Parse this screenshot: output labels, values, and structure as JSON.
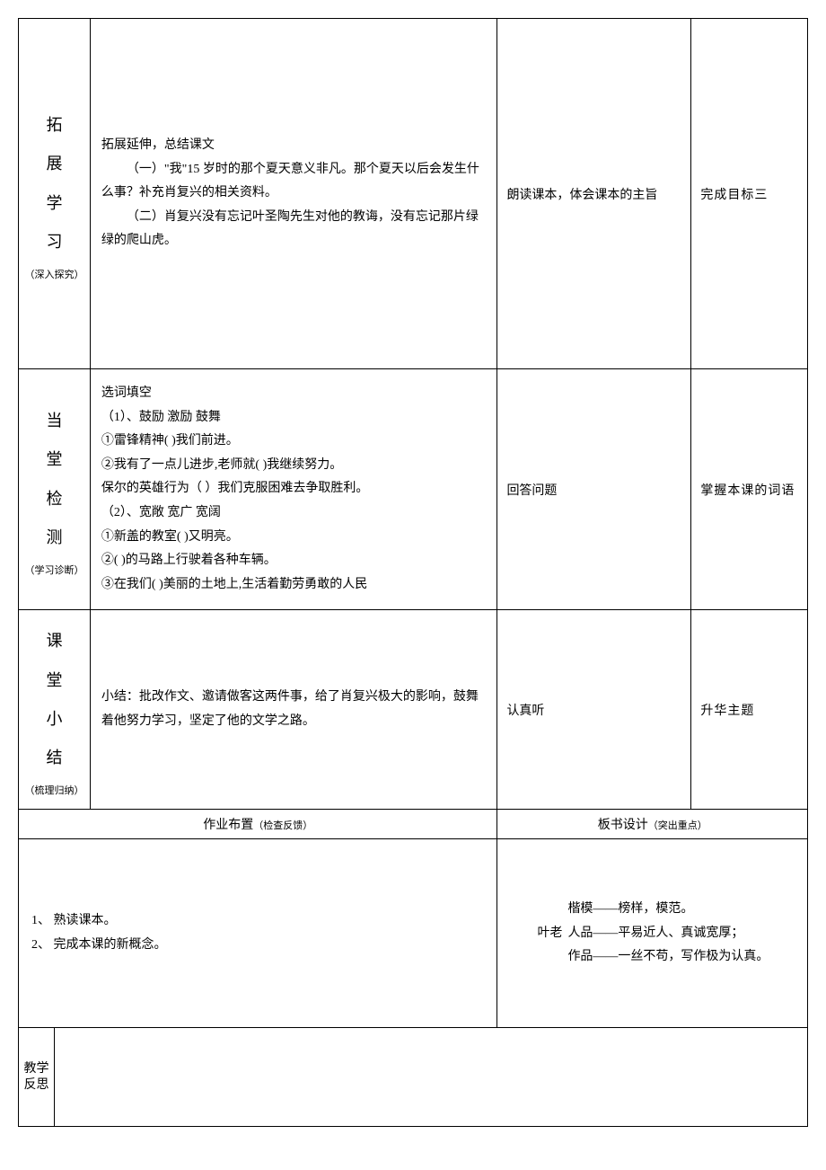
{
  "rows": {
    "extend": {
      "header_chars": [
        "拓",
        "展",
        "学",
        "习"
      ],
      "header_note": "（深入探究）",
      "content_title": "拓展延伸，总结课文",
      "content_p1": "（一）\"我\"15 岁时的那个夏天意义非凡。那个夏天以后会发生什么事？补充肖复兴的相关资料。",
      "content_p2": "（二）肖复兴没有忘记叶圣陶先生对他的教诲，没有忘记那片绿绿的爬山虎。",
      "activity": "朗读课本，体会课本的主旨",
      "goal": "完成目标三"
    },
    "test": {
      "header_chars": [
        "当",
        "堂",
        "检",
        "测"
      ],
      "header_note": "（学习诊断）",
      "content_title": "选词填空",
      "line1": "（1）、鼓励        激励        鼓舞",
      "line2": "①雷锋精神(            )我们前进。",
      "line3": "②我有了一点儿进步,老师就(          )我继续努力。",
      "line4": "保尔的英雄行为（            ）我们克服困难去争取胜利。",
      "line5": "（2）、宽敞        宽广        宽阔",
      "line6": "①新盖的教室(              )又明亮。",
      "line7": "②(                )的马路上行驶着各种车辆。",
      "line8": "③在我们(              )美丽的土地上,生活着勤劳勇敢的人民",
      "activity": "回答问题",
      "goal": "掌握本课的词语"
    },
    "summary": {
      "header_chars": [
        "课",
        "堂",
        "小",
        "结"
      ],
      "header_note": "（梳理归纳）",
      "content": "小结：批改作文、邀请做客这两件事，给了肖复兴极大的影响，鼓舞着他努力学习，坚定了他的文学之路。",
      "activity": "认真听",
      "goal": "升华主题"
    }
  },
  "homework": {
    "header_main": "作业布置",
    "header_sub": "（检查反馈）",
    "item1": "1、 熟读课本。",
    "item2": "2、 完成本课的新概念。"
  },
  "board": {
    "header_main": "板书设计",
    "header_sub": "（突出重点）",
    "left_label": "叶老",
    "line1": "楷模——榜样，模范。",
    "line2": "人品——平易近人、真诚宽厚；",
    "line3": "作品——一丝不苟，写作极为认真。"
  },
  "reflect": {
    "header": "教学反思"
  }
}
